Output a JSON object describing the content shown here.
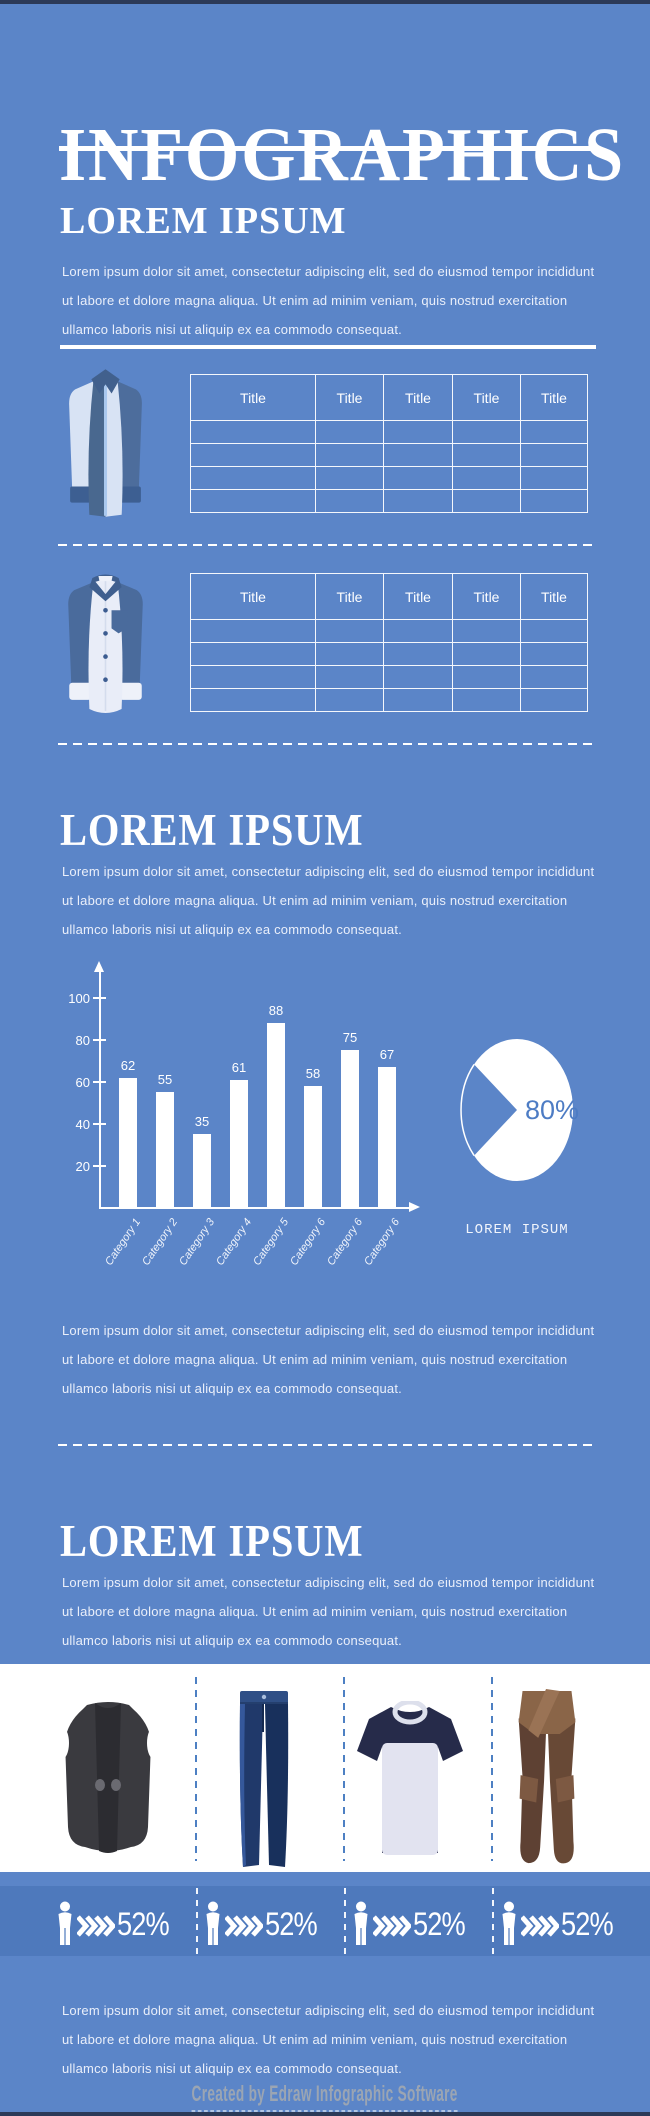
{
  "page": {
    "background": "#5b85c8",
    "stats_band_background": "#4e79bc",
    "edge_color": "#2c3a58",
    "accent_white": "#ffffff"
  },
  "header": {
    "title": "INFOGRAPHICS"
  },
  "lorem_heading": "LOREM IPSUM",
  "lorem_paragraph": "Lorem ipsum dolor sit amet, consectetur adipiscing elit, sed do eiusmod tempor incididunt\nut labore et dolore magna aliqua. Ut enim ad minim veniam, quis nostrud exercitation\nullamco laboris nisi ut aliquip ex ea commodo consequat.",
  "tables": {
    "headers": [
      "Title",
      "Title",
      "Title",
      "Title",
      "Title"
    ],
    "empty_rows": 4,
    "items": [
      {
        "icon": "dress-shirt-icon"
      },
      {
        "icon": "button-shirt-icon"
      }
    ]
  },
  "chart_data": [
    {
      "type": "bar",
      "categories": [
        "Category 1",
        "Category 2",
        "Category 3",
        "Category 4",
        "Category 5",
        "Category 6",
        "Category 6",
        "Category 6"
      ],
      "values": [
        62,
        55,
        35,
        61,
        88,
        58,
        75,
        67
      ],
      "title": "",
      "xlabel": "",
      "ylabel": "",
      "ylim": [
        0,
        110
      ],
      "yticks": [
        20,
        40,
        60,
        80,
        100
      ],
      "bar_color": "#ffffff",
      "grid": false,
      "legend": "none"
    },
    {
      "type": "pie",
      "values": [
        80,
        20
      ],
      "label": "80%",
      "caption": "LOREM IPSUM",
      "slice_colors": [
        "#ffffff",
        "#5b85c8"
      ],
      "label_color": "#4d7cc4"
    }
  ],
  "clothing": {
    "items": [
      {
        "icon": "vest-icon"
      },
      {
        "icon": "jeans-icon"
      },
      {
        "icon": "t-shirt-icon"
      },
      {
        "icon": "trousers-icon"
      }
    ]
  },
  "stats": {
    "items": [
      {
        "icon": "person-icon",
        "value": "52%"
      },
      {
        "icon": "person-icon",
        "value": "52%"
      },
      {
        "icon": "person-icon",
        "value": "52%"
      },
      {
        "icon": "person-icon",
        "value": "52%"
      }
    ]
  },
  "footer": {
    "credit": "Created by Edraw Infographic Software"
  }
}
